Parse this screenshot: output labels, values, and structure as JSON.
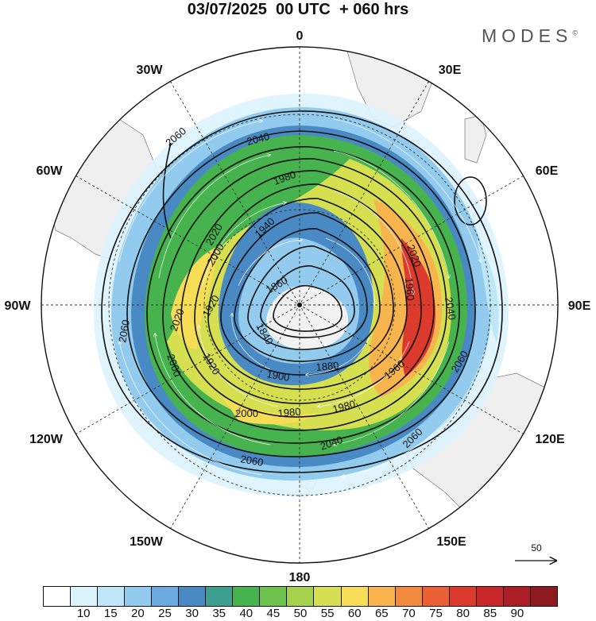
{
  "title": {
    "date": "03/07/2025",
    "time": "00 UTC",
    "lead": "+ 060 hrs"
  },
  "brand": "MODES",
  "brand_mark": "©",
  "map": {
    "projection": "south-polar-stereographic",
    "longitude_labels": {
      "top": "0",
      "upper_left": "30W",
      "upper_right": "30E",
      "left_upper": "60W",
      "right_upper": "60E",
      "left": "90W",
      "right": "90E",
      "left_lower": "120W",
      "right_lower": "120E",
      "lower_left": "150W",
      "lower_right": "150E",
      "bottom": "180"
    },
    "contour_labels": [
      "2060",
      "2040",
      "1980",
      "1940",
      "2000",
      "1920",
      "1860",
      "1840",
      "2020",
      "2060",
      "2000",
      "1920",
      "1900",
      "1880",
      "1960",
      "1980",
      "1980",
      "2000",
      "2040",
      "2060",
      "2060",
      "2020",
      "2040",
      "2020",
      "1960",
      "2060"
    ],
    "reference_vector": {
      "label": "50",
      "value": 50
    },
    "colors": {
      "land": "#efefef",
      "coast": "#777777",
      "contour": "#111111",
      "grid": "#333333"
    }
  },
  "colorbar": {
    "colors": [
      "#ffffff",
      "#dcf3fc",
      "#bde6f8",
      "#93cbee",
      "#6aaadf",
      "#4a8ac4",
      "#3c9f8f",
      "#47b34e",
      "#6cc24a",
      "#a6d14d",
      "#d6df4f",
      "#f7dd55",
      "#f8b44d",
      "#f38b3f",
      "#ea6034",
      "#db3a2c",
      "#c82628",
      "#ac1d25",
      "#8c1a1e"
    ],
    "labels": [
      "10",
      "15",
      "20",
      "25",
      "30",
      "35",
      "40",
      "45",
      "50",
      "55",
      "60",
      "65",
      "70",
      "75",
      "80",
      "85",
      "90"
    ]
  }
}
